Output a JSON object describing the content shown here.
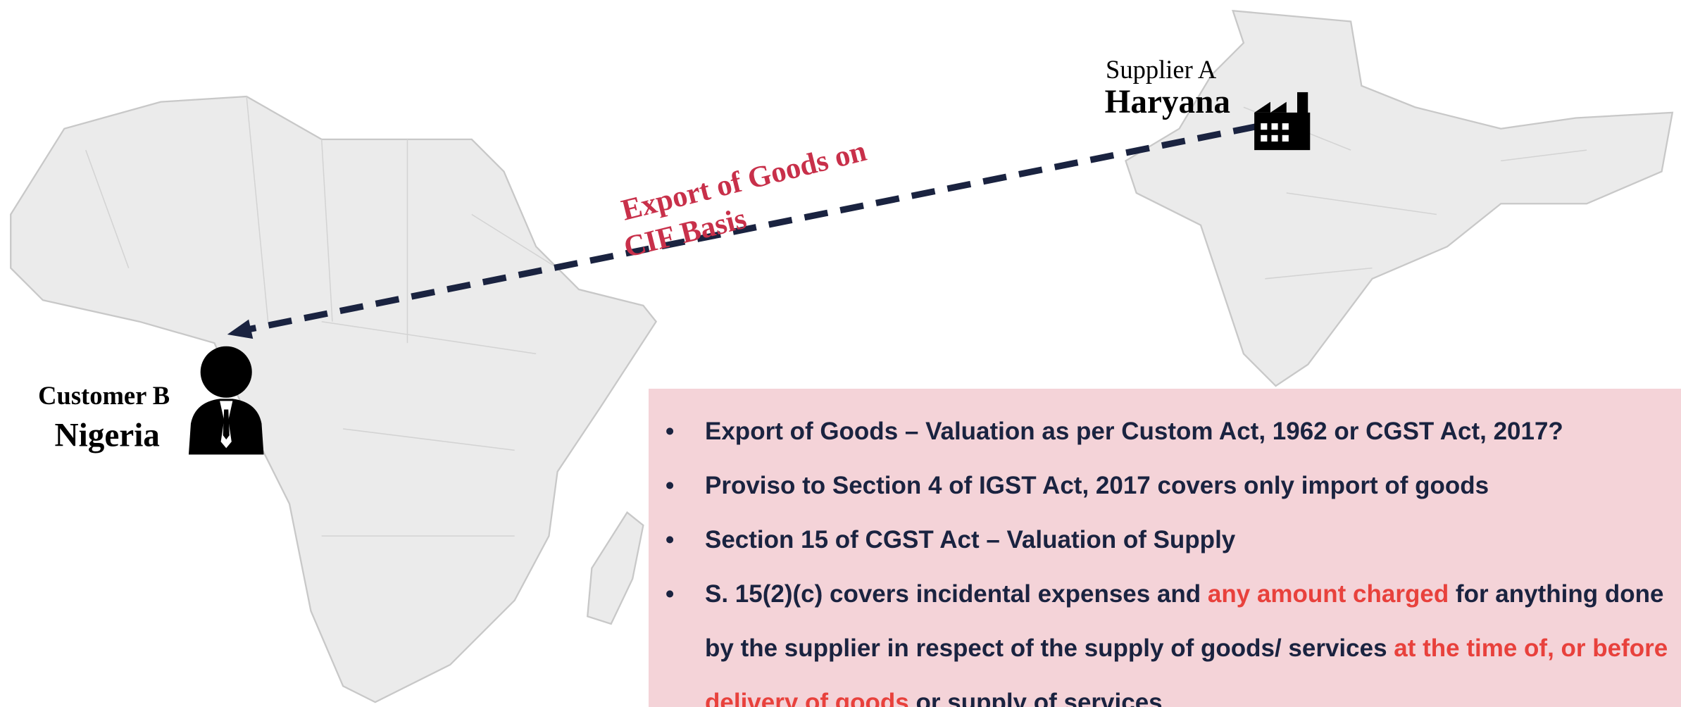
{
  "supplier": {
    "name": "Supplier A",
    "location": "Haryana"
  },
  "customer": {
    "name": "Customer B",
    "location": "Nigeria"
  },
  "arrow_label": {
    "lines": [
      "Export of Goods on",
      "CIF Basis"
    ]
  },
  "bullets": [
    {
      "segments": [
        {
          "text": "Export of Goods – Valuation as per Custom Act, 1962 or CGST Act, 2017?",
          "highlight": false
        }
      ]
    },
    {
      "segments": [
        {
          "text": "Proviso to Section 4 of IGST Act, 2017 covers only import of goods",
          "highlight": false
        }
      ]
    },
    {
      "segments": [
        {
          "text": "Section 15 of CGST Act – Valuation of Supply",
          "highlight": false
        }
      ]
    },
    {
      "segments": [
        {
          "text": "S. 15(2)(c) covers incidental expenses and ",
          "highlight": false
        },
        {
          "text": "any amount charged",
          "highlight": true
        },
        {
          "text": " for anything done by the supplier in respect of the supply of goods/ services ",
          "highlight": false
        },
        {
          "text": "at the time of, or before delivery of goods",
          "highlight": true
        },
        {
          "text": " or supply of services",
          "highlight": false
        }
      ]
    }
  ]
}
